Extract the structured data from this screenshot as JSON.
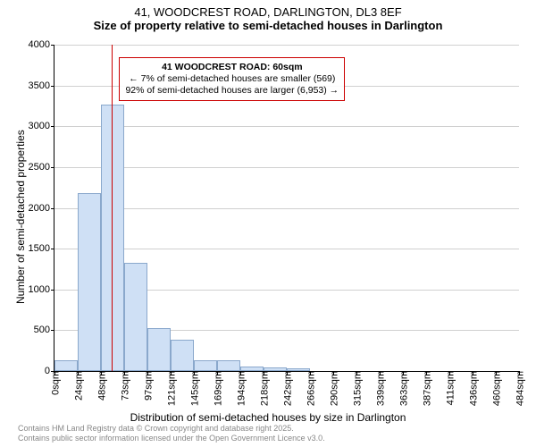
{
  "header": {
    "line1": "41, WOODCREST ROAD, DARLINGTON, DL3 8EF",
    "line2": "Size of property relative to semi-detached houses in Darlington"
  },
  "chart": {
    "type": "histogram",
    "ylabel": "Number of semi-detached properties",
    "xlabel": "Distribution of semi-detached houses by size in Darlington",
    "ylim": [
      0,
      4000
    ],
    "ytick_step": 500,
    "yticks": [
      0,
      500,
      1000,
      1500,
      2000,
      2500,
      3000,
      3500,
      4000
    ],
    "xticks": [
      "0sqm",
      "24sqm",
      "48sqm",
      "73sqm",
      "97sqm",
      "121sqm",
      "145sqm",
      "169sqm",
      "194sqm",
      "218sqm",
      "242sqm",
      "266sqm",
      "290sqm",
      "315sqm",
      "339sqm",
      "363sqm",
      "387sqm",
      "411sqm",
      "436sqm",
      "460sqm",
      "484sqm"
    ],
    "bar_values": [
      130,
      2180,
      3270,
      1330,
      530,
      380,
      130,
      130,
      50,
      40,
      30,
      0,
      0,
      0,
      0,
      0,
      0,
      0,
      0,
      0
    ],
    "bar_fill": "#cfe0f5",
    "bar_border": "#8aa8cc",
    "grid_color": "#d0d0d0",
    "background_color": "#ffffff",
    "reference_line": {
      "value_sqm": 60,
      "color": "#cc0000"
    },
    "annotation": {
      "line1": "41 WOODCREST ROAD: 60sqm",
      "line2": "← 7% of semi-detached houses are smaller (569)",
      "line3": "92% of semi-detached houses are larger (6,953) →",
      "border_color": "#cc0000"
    },
    "label_fontsize": 12,
    "tick_fontsize": 11
  },
  "attribution": {
    "line1": "Contains HM Land Registry data © Crown copyright and database right 2025.",
    "line2": "Contains public sector information licensed under the Open Government Licence v3.0."
  }
}
